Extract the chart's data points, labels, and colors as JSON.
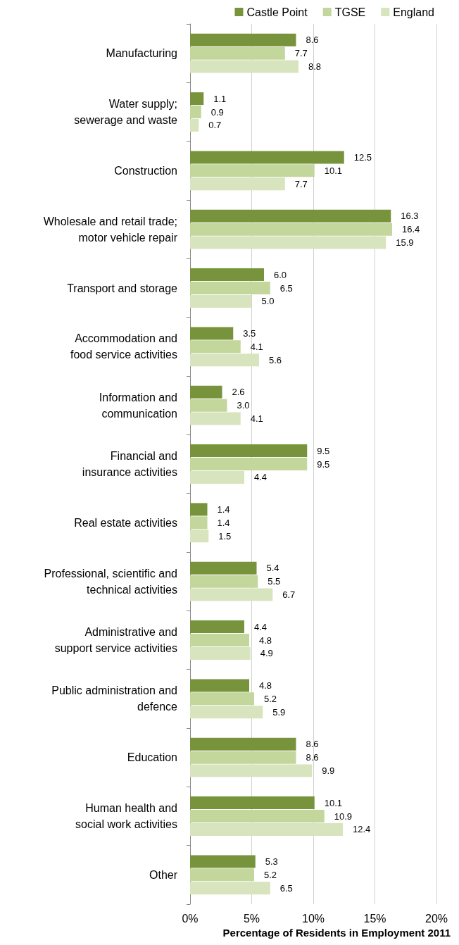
{
  "chart_data": {
    "type": "bar",
    "orientation": "horizontal",
    "categories": [
      "Manufacturing",
      "Water supply;\nsewerage and waste",
      "Construction",
      "Wholesale and retail trade;\nmotor vehicle repair",
      "Transport and storage",
      "Accommodation and\nfood service activities",
      "Information and\ncommunication",
      "Financial and\ninsurance activities",
      "Real estate activities",
      "Professional, scientific and\ntechnical activities",
      "Administrative and\nsupport service activities",
      "Public administration and\ndefence",
      "Education",
      "Human health and\nsocial work activities",
      "Other"
    ],
    "series": [
      {
        "name": "Castle Point",
        "color": "#77933c",
        "values": [
          8.6,
          1.1,
          12.5,
          16.3,
          6.0,
          3.5,
          2.6,
          9.5,
          1.4,
          5.4,
          4.4,
          4.8,
          8.6,
          10.1,
          5.3
        ],
        "value_labels": [
          "8.6",
          "1.1",
          "12.5",
          "16.3",
          "6.0",
          "3.5",
          "2.6",
          "9.5",
          "1.4",
          "5.4",
          "4.4",
          "4.8",
          "8.6",
          "10.1",
          "5.3"
        ]
      },
      {
        "name": "TGSE",
        "color": "#c3d69b",
        "values": [
          7.7,
          0.9,
          10.1,
          16.4,
          6.5,
          4.1,
          3.0,
          9.5,
          1.4,
          5.5,
          4.8,
          5.2,
          8.6,
          10.9,
          5.2
        ],
        "value_labels": [
          "7.7",
          "0.9",
          "10.1",
          "16.4",
          "6.5",
          "4.1",
          "3.0",
          "9.5",
          "1.4",
          "5.5",
          "4.8",
          "5.2",
          "8.6",
          "10.9",
          "5.2"
        ]
      },
      {
        "name": "England",
        "color": "#d7e4bd",
        "values": [
          8.8,
          0.7,
          7.7,
          15.9,
          5.0,
          5.6,
          4.1,
          4.4,
          1.5,
          6.7,
          4.9,
          5.9,
          9.9,
          12.4,
          6.5
        ],
        "value_labels": [
          "8.8",
          "0.7",
          "7.7",
          "15.9",
          "5.0",
          "5.6",
          "4.1",
          "4.4",
          "1.5",
          "6.7",
          "4.9",
          "5.9",
          "9.9",
          "12.4",
          "6.5"
        ]
      }
    ],
    "xlim": [
      0,
      20
    ],
    "xticks": [
      {
        "value": 0,
        "label": "0%"
      },
      {
        "value": 5,
        "label": "5%"
      },
      {
        "value": 10,
        "label": "10%"
      },
      {
        "value": 15,
        "label": "15%"
      },
      {
        "value": 20,
        "label": "20%"
      }
    ],
    "grid": "x",
    "legend": "top right",
    "annotations": [
      "Percentage of Residents in Employment 2011"
    ]
  }
}
